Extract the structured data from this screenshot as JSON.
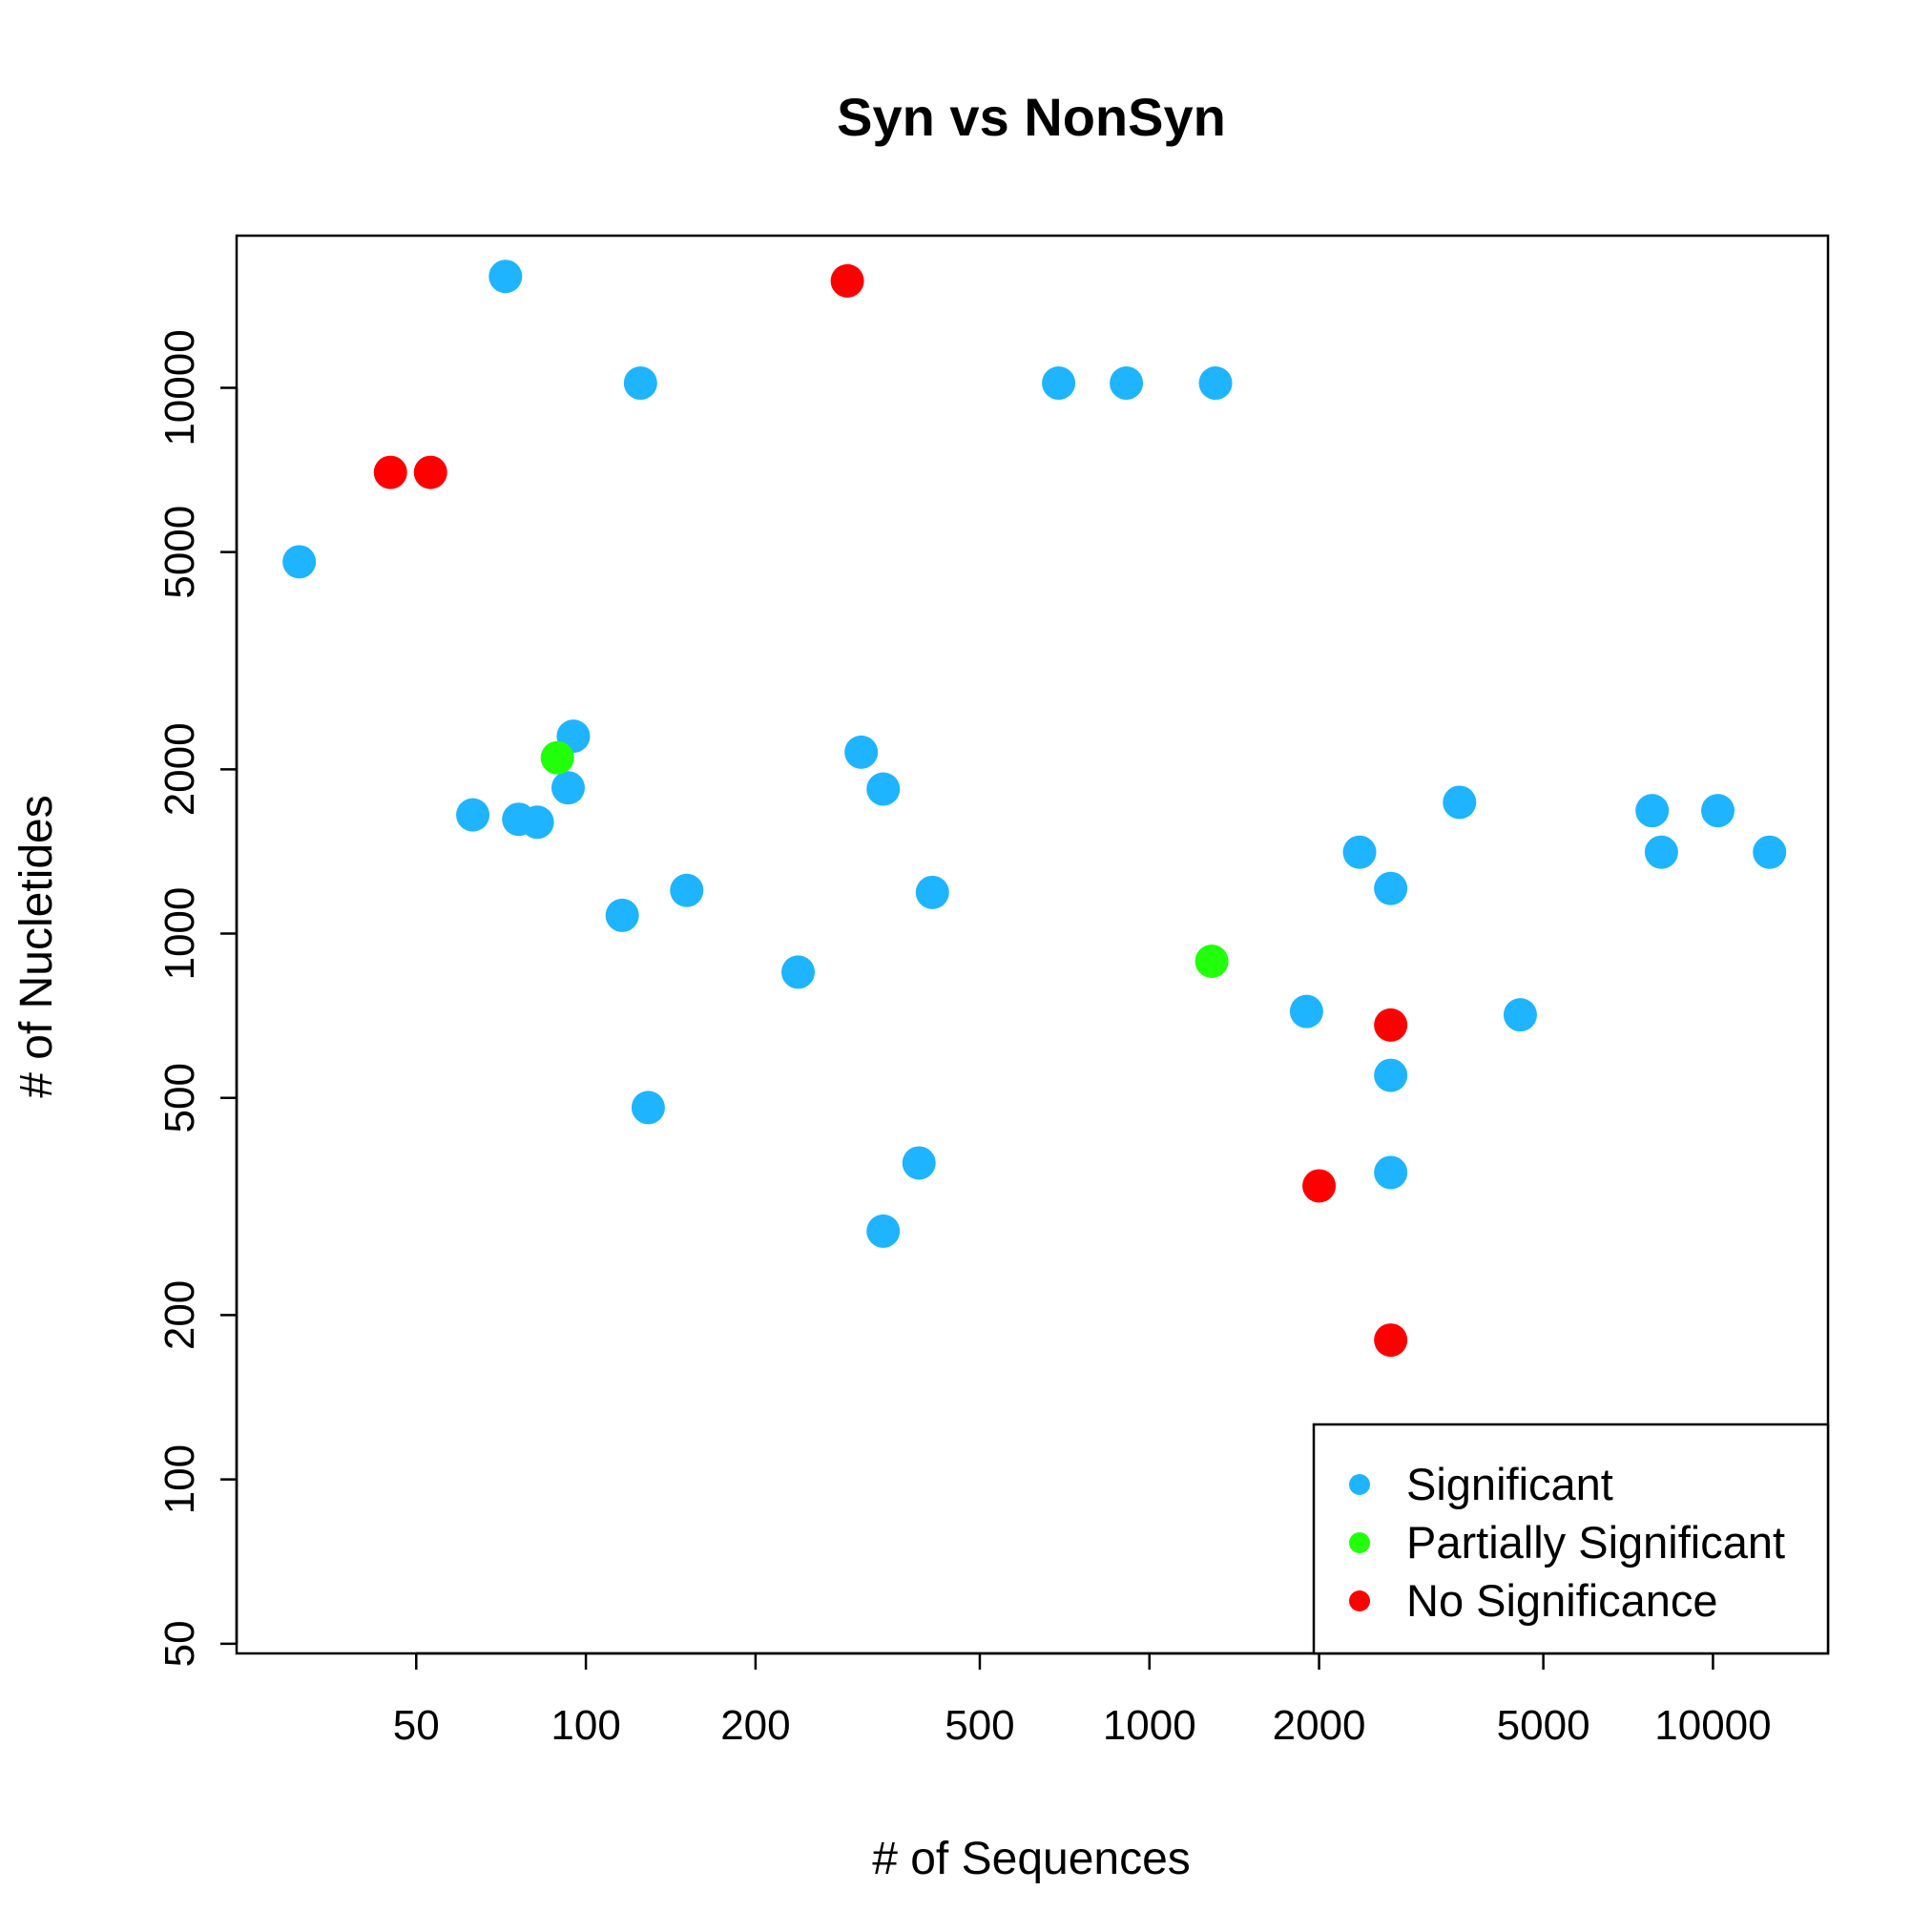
{
  "chart_data": {
    "type": "scatter",
    "title": "Syn vs NonSyn",
    "xlabel": "# of Sequences",
    "ylabel": "# of Nucletides",
    "xscale": "log",
    "yscale": "log",
    "xlim": [
      24,
      16000
    ],
    "ylim": [
      48,
      19000
    ],
    "xticks": [
      50,
      100,
      200,
      500,
      1000,
      2000,
      5000,
      10000
    ],
    "xtick_labels": [
      "50",
      "100",
      "200",
      "500",
      "1000",
      "2000",
      "5000",
      "10000"
    ],
    "yticks": [
      50,
      100,
      200,
      500,
      1000,
      2000,
      5000,
      10000
    ],
    "ytick_labels": [
      "50",
      "100",
      "200",
      "500",
      "1000",
      "2000",
      "5000",
      "10000"
    ],
    "grid": false,
    "legend_position": "bottom-right",
    "series": [
      {
        "name": "Significant",
        "color": "#1eb4ff",
        "points": [
          [
            31,
            4800
          ],
          [
            72,
            16000
          ],
          [
            125,
            10200
          ],
          [
            690,
            10200
          ],
          [
            910,
            10200
          ],
          [
            1310,
            10200
          ],
          [
            95,
            2300
          ],
          [
            93,
            1850
          ],
          [
            63,
            1650
          ],
          [
            76,
            1620
          ],
          [
            82,
            1600
          ],
          [
            308,
            2150
          ],
          [
            337,
            1840
          ],
          [
            116,
            1080
          ],
          [
            151,
            1200
          ],
          [
            412,
            1190
          ],
          [
            238,
            850
          ],
          [
            129,
            480
          ],
          [
            390,
            380
          ],
          [
            337,
            285
          ],
          [
            3550,
            1740
          ],
          [
            2360,
            1410
          ],
          [
            2680,
            1210
          ],
          [
            1900,
            720
          ],
          [
            2680,
            550
          ],
          [
            2680,
            365
          ],
          [
            4550,
            710
          ],
          [
            7800,
            1680
          ],
          [
            8100,
            1410
          ],
          [
            10200,
            1680
          ],
          [
            12600,
            1410
          ]
        ]
      },
      {
        "name": "Partially Significant",
        "color": "#22ff0a",
        "points": [
          [
            89,
            2100
          ],
          [
            1290,
            890
          ]
        ]
      },
      {
        "name": "No Significance",
        "color": "#ff0000",
        "points": [
          [
            45,
            7000
          ],
          [
            53,
            7000
          ],
          [
            291,
            15700
          ],
          [
            2680,
            680
          ],
          [
            2000,
            345
          ],
          [
            2680,
            180
          ]
        ]
      }
    ]
  }
}
